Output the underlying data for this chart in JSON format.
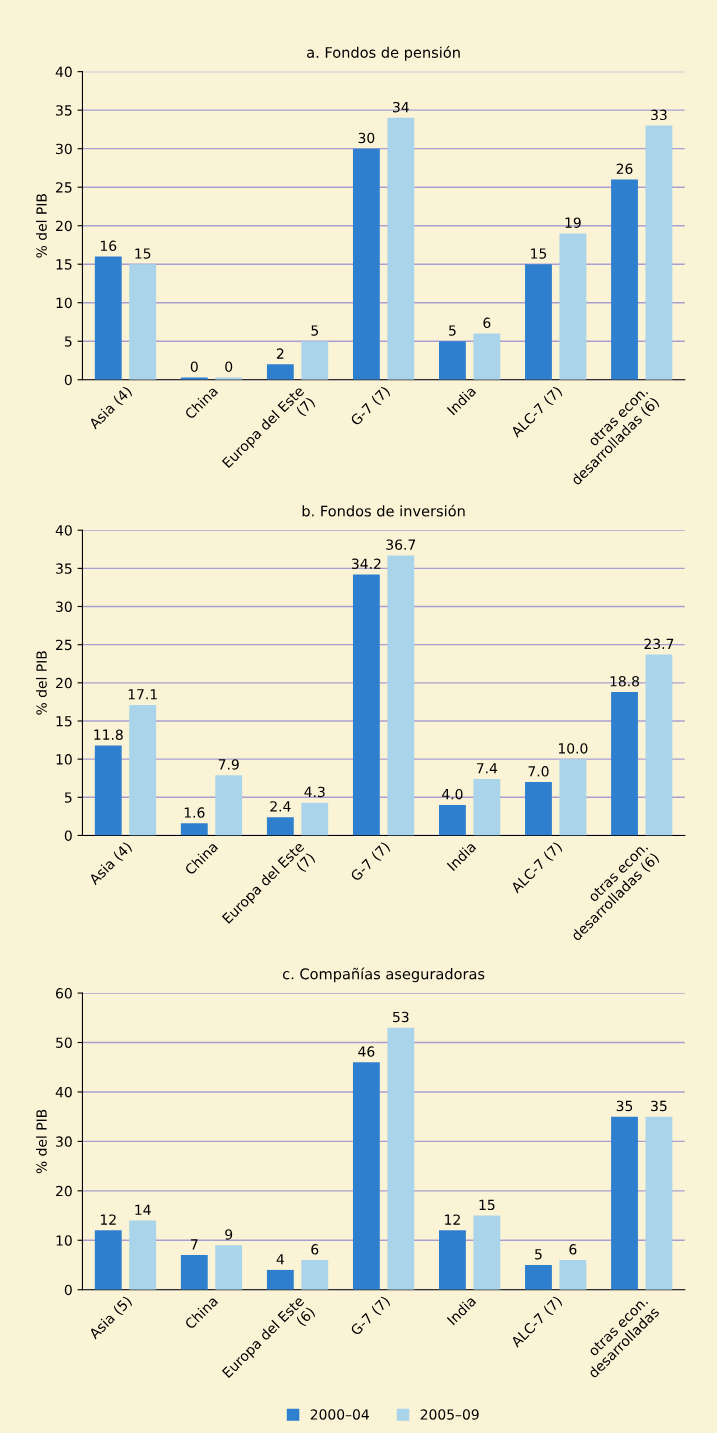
{
  "chart_data": [
    {
      "type": "bar",
      "title": "a. Fondos de pensión",
      "ylabel": "% del PIB",
      "categories": [
        "Asia (4)",
        "China",
        "Europa del Este\n(7)",
        "G-7 (7)",
        "India",
        "ALC-7 (7)",
        "otras econ.\ndesarrolladas (6)"
      ],
      "series": [
        {
          "color": "#2f7fcf",
          "values": [
            16,
            0.3,
            2,
            30,
            5,
            15,
            26
          ],
          "value_labels": [
            "16",
            "0",
            "2",
            "30",
            "5",
            "15",
            "26"
          ]
        },
        {
          "color": "#a9d4ea",
          "values": [
            15,
            0.3,
            5,
            34,
            6,
            19,
            33
          ],
          "value_labels": [
            "15",
            "0",
            "5",
            "34",
            "6",
            "19",
            "33"
          ]
        }
      ],
      "ylim": [
        0,
        40
      ],
      "yticks": [
        0,
        5,
        10,
        15,
        20,
        25,
        30,
        35,
        40
      ],
      "grid": "y"
    },
    {
      "type": "bar",
      "title": "b. Fondos de inversión",
      "ylabel": "% del PIB",
      "categories": [
        "Asia (4)",
        "China",
        "Europa del Este\n(7)",
        "G-7 (7)",
        "India",
        "ALC-7 (7)",
        "otras econ.\ndesarrolladas (6)"
      ],
      "series": [
        {
          "color": "#2f7fcf",
          "values": [
            11.8,
            1.6,
            2.4,
            34.2,
            4,
            7,
            18.8
          ],
          "value_labels": [
            "11.8",
            "1.6",
            "2.4",
            "34.2",
            "4.0",
            "7.0",
            "18.8"
          ]
        },
        {
          "color": "#a9d4ea",
          "values": [
            17.1,
            7.9,
            4.3,
            36.7,
            7.4,
            10,
            23.7
          ],
          "value_labels": [
            "17.1",
            "7.9",
            "4.3",
            "36.7",
            "7.4",
            "10.0",
            "23.7"
          ]
        }
      ],
      "ylim": [
        0,
        40
      ],
      "yticks": [
        0,
        5,
        10,
        15,
        20,
        25,
        30,
        35,
        40
      ],
      "grid": "y"
    },
    {
      "type": "bar",
      "title": "c. Compañías aseguradoras",
      "ylabel": "% del PIB",
      "categories": [
        "Asia (5)",
        "China",
        "Europa del Este\n(6)",
        "G-7 (7)",
        "India",
        "ALC-7 (7)",
        "otras econ.\ndesarrolladas"
      ],
      "series": [
        {
          "name": "2000–04",
          "color": "#2f7fcf",
          "values": [
            12,
            7,
            4,
            46,
            12,
            5,
            35
          ]
        },
        {
          "name": "2005–09",
          "color": "#a9d4ea",
          "values": [
            14,
            9,
            6,
            53,
            15,
            6,
            35
          ]
        }
      ],
      "ylim": [
        0,
        60
      ],
      "yticks": [
        0,
        10,
        20,
        30,
        40,
        50,
        60
      ],
      "grid": "y",
      "data_labels": true,
      "legend": "bottom"
    }
  ]
}
